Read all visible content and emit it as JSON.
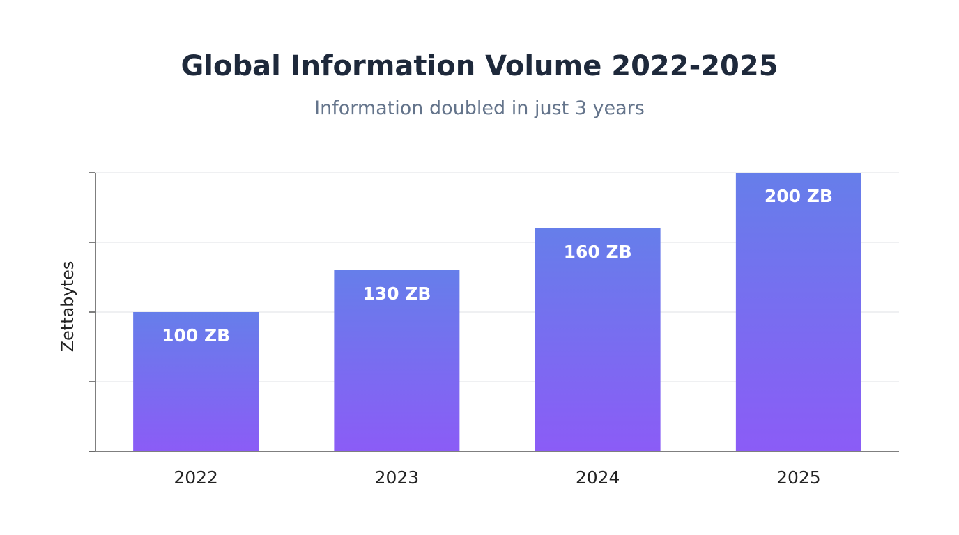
{
  "chart_data": {
    "type": "bar",
    "title": "Global Information Volume 2022-2025",
    "subtitle": "Information doubled in just 3 years",
    "xlabel": "",
    "ylabel": "Zettabytes",
    "categories": [
      "2022",
      "2023",
      "2024",
      "2025"
    ],
    "values": [
      100,
      130,
      160,
      200
    ],
    "data_labels": [
      "100 ZB",
      "130 ZB",
      "160 ZB",
      "200 ZB"
    ],
    "ylim": [
      0,
      200
    ],
    "yticks": [
      0,
      50,
      100,
      150,
      200
    ],
    "ytick_labels_shown": false,
    "grid": true,
    "legend": "none",
    "colors": {
      "bar_top": "#667eea",
      "bar_bottom": "#8b5cf6",
      "axis": "#555555",
      "grid": "#e5e7eb"
    }
  }
}
